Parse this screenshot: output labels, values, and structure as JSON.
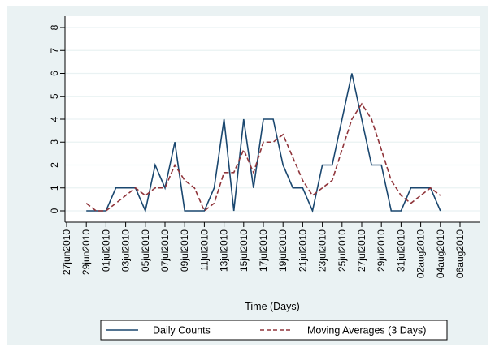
{
  "chart_data": {
    "type": "line",
    "title": "",
    "xlabel": "Time (Days)",
    "ylabel": "",
    "ylim": [
      0,
      8
    ],
    "yticks": [
      "0",
      "1",
      "2",
      "3",
      "4",
      "5",
      "6",
      "7",
      "8"
    ],
    "xlim": [
      "2010-06-27",
      "2010-08-06"
    ],
    "xticks": [
      "27jun2010",
      "29jun2010",
      "01jul2010",
      "03jul2010",
      "05jul2010",
      "07jul2010",
      "09jul2010",
      "11jul2010",
      "13jul2010",
      "15jul2010",
      "17jul2010",
      "19jul2010",
      "21jul2010",
      "23jul2010",
      "25jul2010",
      "27jul2010",
      "29jul2010",
      "31jul2010",
      "02aug2010",
      "04aug2010",
      "06aug2010"
    ],
    "x": [
      "2010-06-29",
      "2010-06-30",
      "2010-07-01",
      "2010-07-02",
      "2010-07-03",
      "2010-07-04",
      "2010-07-05",
      "2010-07-06",
      "2010-07-07",
      "2010-07-08",
      "2010-07-09",
      "2010-07-10",
      "2010-07-11",
      "2010-07-12",
      "2010-07-13",
      "2010-07-14",
      "2010-07-15",
      "2010-07-16",
      "2010-07-17",
      "2010-07-18",
      "2010-07-19",
      "2010-07-20",
      "2010-07-21",
      "2010-07-22",
      "2010-07-23",
      "2010-07-24",
      "2010-07-25",
      "2010-07-26",
      "2010-07-27",
      "2010-07-28",
      "2010-07-29",
      "2010-07-30",
      "2010-07-31",
      "2010-08-01",
      "2010-08-02",
      "2010-08-03",
      "2010-08-04"
    ],
    "series": [
      {
        "name": "Daily Counts",
        "color": "#1a476f",
        "style": "solid",
        "values": [
          0,
          0,
          0,
          1,
          1,
          1,
          0,
          2,
          1,
          3,
          0,
          0,
          0,
          1,
          4,
          0,
          4,
          1,
          4,
          4,
          2,
          1,
          1,
          0,
          2,
          2,
          4,
          6,
          4,
          2,
          2,
          0,
          0,
          1,
          1,
          1,
          0
        ]
      },
      {
        "name": "Moving Averages (3 Days)",
        "color": "#90353b",
        "style": "dashed",
        "values": [
          0.33,
          0,
          0,
          0.33,
          0.67,
          1,
          0.67,
          1,
          1,
          2,
          1.33,
          1,
          0,
          0.33,
          1.67,
          1.67,
          2.67,
          1.67,
          3,
          3,
          3.33,
          2.33,
          1.33,
          0.67,
          1,
          1.33,
          2.67,
          4,
          4.67,
          4,
          2.67,
          1.33,
          0.67,
          0.33,
          0.67,
          1,
          0.67
        ]
      }
    ],
    "grid": true,
    "legend_position": "bottom"
  },
  "colors": {
    "outer_background": "#eaf2f3",
    "plot_background": "#ffffff",
    "gridline": "#eaf2f3",
    "axis": "#000000"
  }
}
